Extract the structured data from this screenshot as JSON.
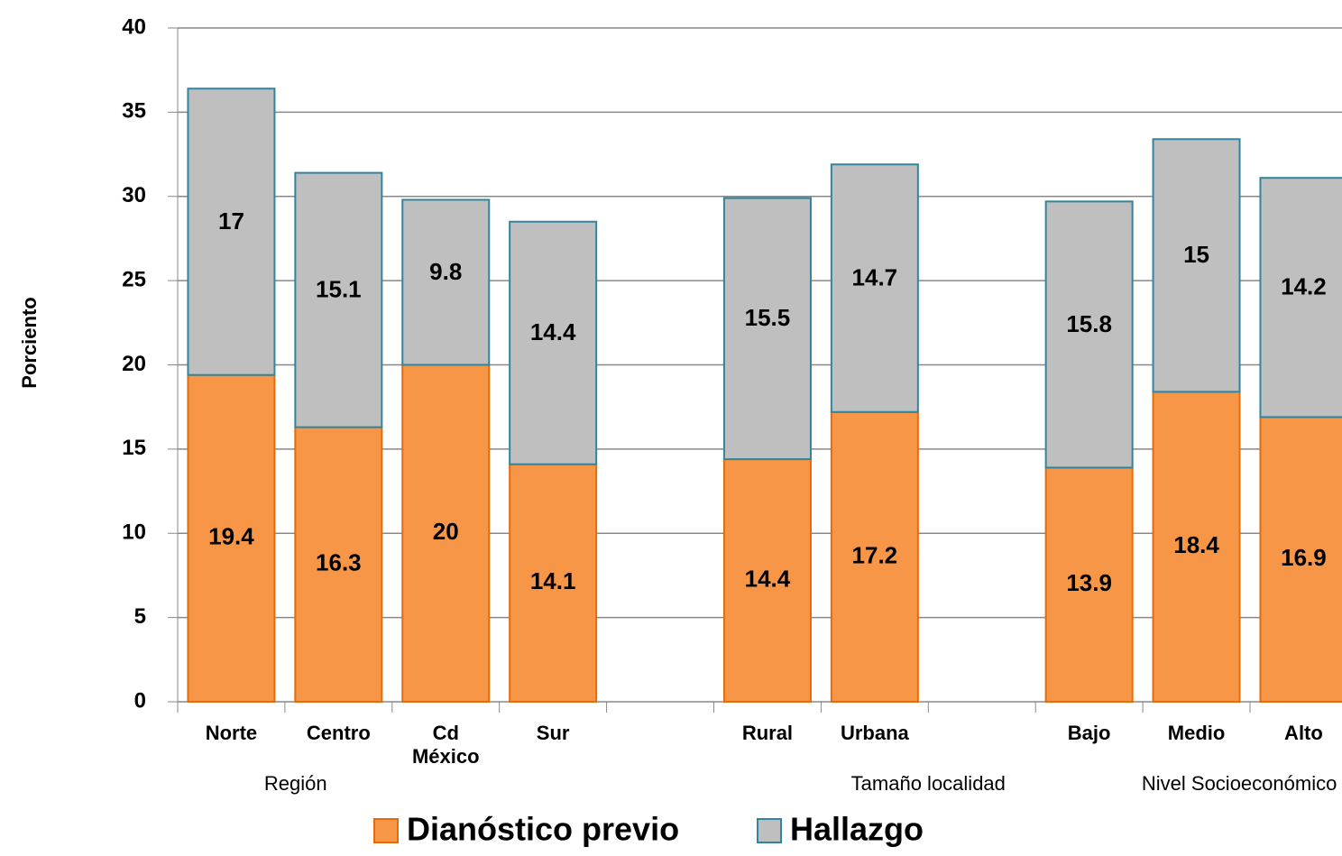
{
  "chart_data": {
    "type": "stacked_bar",
    "y_axis_label": "Porciento",
    "categories": [
      "Norte",
      "Centro",
      "Cd México",
      "Sur",
      null,
      "Rural",
      "Urbana",
      null,
      "Bajo",
      "Medio",
      "Alto"
    ],
    "group_labels": [
      "Región",
      "Tamaño localidad",
      "Nivel Socioeconómico"
    ],
    "series": [
      {
        "name": "Dianóstico previo",
        "color": "#f79646",
        "values": [
          19.4,
          16.3,
          20,
          14.1,
          null,
          14.4,
          17.2,
          null,
          13.9,
          18.4,
          16.9
        ]
      },
      {
        "name": "Hallazgo",
        "color": "#bfbfbf",
        "values": [
          17,
          15.1,
          9.8,
          14.4,
          null,
          15.5,
          14.7,
          null,
          15.8,
          15,
          14.2
        ]
      }
    ],
    "ylim": [
      0,
      40
    ],
    "yticks": [
      0,
      5,
      10,
      15,
      20,
      25,
      30,
      35,
      40
    ],
    "grid": true
  }
}
